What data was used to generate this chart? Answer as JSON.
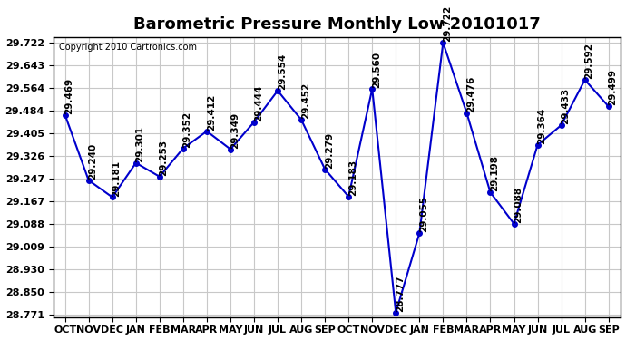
{
  "title": "Barometric Pressure Monthly Low 20101017",
  "copyright": "Copyright 2010 Cartronics.com",
  "months": [
    "OCT",
    "NOV",
    "DEC",
    "JAN",
    "FEB",
    "MAR",
    "APR",
    "MAY",
    "JUN",
    "JUL",
    "AUG",
    "SEP",
    "OCT",
    "NOV",
    "DEC",
    "JAN",
    "FEB",
    "MAR",
    "APR",
    "MAY",
    "JUN",
    "JUL",
    "AUG",
    "SEP"
  ],
  "values": [
    29.469,
    29.24,
    29.181,
    29.301,
    29.253,
    29.352,
    29.412,
    29.349,
    29.444,
    29.554,
    29.452,
    29.279,
    29.183,
    29.56,
    28.777,
    29.055,
    29.722,
    29.476,
    29.198,
    29.088,
    29.364,
    29.433,
    29.592,
    29.499
  ],
  "line_color": "#0000cc",
  "marker_color": "#0000cc",
  "bg_color": "#ffffff",
  "grid_color": "#c8c8c8",
  "title_fontsize": 13,
  "label_fontsize": 7.5,
  "tick_fontsize": 8,
  "ylim_min": 28.761,
  "ylim_max": 29.742,
  "yticks": [
    28.771,
    28.85,
    28.93,
    29.009,
    29.088,
    29.167,
    29.247,
    29.326,
    29.405,
    29.484,
    29.564,
    29.643,
    29.722
  ]
}
